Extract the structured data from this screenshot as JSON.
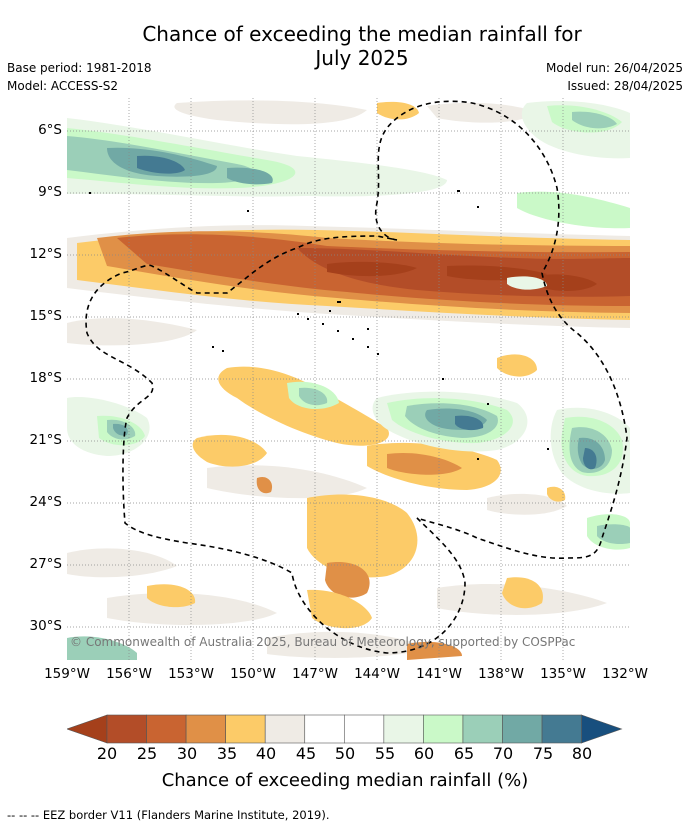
{
  "header": {
    "title_line1": "Chance of exceeding the median rainfall for",
    "title_line2": "July 2025",
    "base_period": "Base period: 1981-2018",
    "model": "Model: ACCESS-S2",
    "model_run": "Model run: 26/04/2025",
    "issued": "Issued: 28/04/2025"
  },
  "map": {
    "y_ticks": [
      "6°S",
      "9°S",
      "12°S",
      "15°S",
      "18°S",
      "21°S",
      "24°S",
      "27°S",
      "30°S"
    ],
    "x_ticks": [
      "159°W",
      "156°W",
      "153°W",
      "150°W",
      "147°W",
      "144°W",
      "141°W",
      "138°W",
      "135°W",
      "132°W"
    ],
    "lat_range": [
      4.4,
      31.5
    ],
    "lon_range": [
      159,
      132
    ],
    "copyright": "© Commonwealth of Australia 2025, Bureau of Meteorology, supported by COSPPac"
  },
  "colorbar": {
    "ticks": [
      "20",
      "25",
      "30",
      "35",
      "40",
      "45",
      "50",
      "55",
      "60",
      "65",
      "70",
      "75",
      "80"
    ],
    "colors": [
      "#a5401b",
      "#b34d28",
      "#c96431",
      "#e09047",
      "#fccb68",
      "#efebe5",
      "#ffffff",
      "#ffffff",
      "#e9f6e7",
      "#caf9c8",
      "#9bcfb8",
      "#71a9a5",
      "#447a92",
      "#184f7e"
    ],
    "label": "Chance of exceeding median rainfall (%)"
  },
  "legend_text": "--  --  -- EEZ border V11 (Flanders Marine Institute, 2019)."
}
